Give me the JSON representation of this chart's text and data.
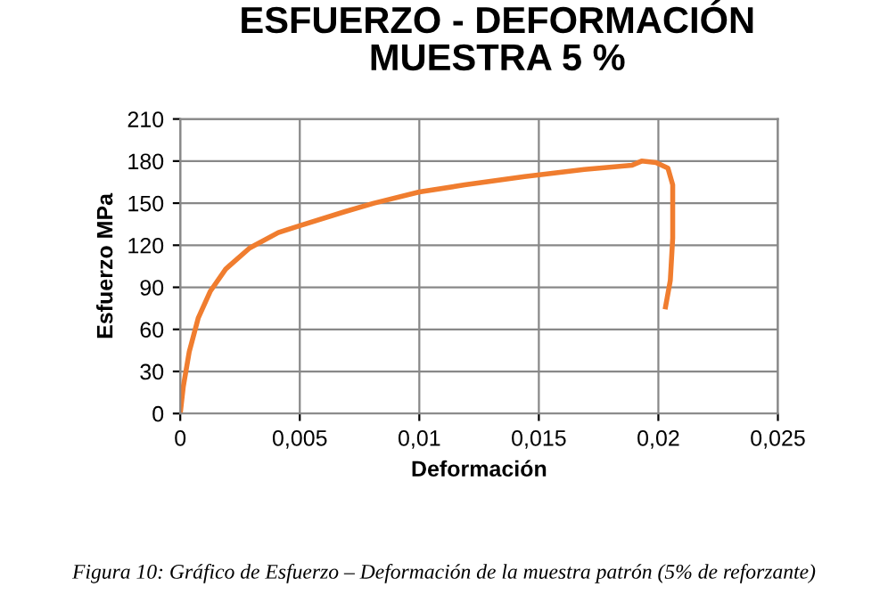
{
  "chart_data": {
    "type": "line",
    "title": "ESFUERZO - DEFORMACIÓN\nMUESTRA 5 %",
    "xlabel": "Deformación",
    "ylabel": "Esfuerzo MPa",
    "annotations": [
      "Figura 10: Gráfico de Esfuerzo – Deformación de la muestra patrón (5% de reforzante)"
    ],
    "series": [
      {
        "color": "#f07d2f",
        "x": [
          0,
          0.000125,
          0.000375,
          0.00075,
          0.00125,
          0.0019,
          0.0029,
          0.0041,
          0.005,
          0.0069,
          0.0081,
          0.01,
          0.0119,
          0.0144,
          0.0169,
          0.0189,
          0.0193,
          0.0199,
          0.0204,
          0.0206,
          0.0206,
          0.0205,
          0.0203
        ],
        "values": [
          0,
          19,
          44,
          68,
          87,
          103,
          118,
          129,
          134,
          144,
          150,
          158,
          163,
          169,
          174,
          177,
          180,
          179,
          175,
          163,
          125,
          95,
          76
        ]
      }
    ],
    "xlim": [
      0,
      0.025
    ],
    "ylim": [
      0,
      210
    ],
    "xticks": [
      0,
      {
        "value": 0.005,
        "label": "0,005"
      },
      {
        "value": 0.01,
        "label": "0,01"
      },
      {
        "value": 0.015,
        "label": "0,015"
      },
      {
        "value": 0.02,
        "label": "0,02"
      },
      {
        "value": 0.025,
        "label": "0,025"
      }
    ],
    "yticks": [
      0,
      30,
      60,
      90,
      120,
      150,
      180,
      210
    ],
    "grid": true,
    "marker": "none",
    "line_style": "solid"
  }
}
